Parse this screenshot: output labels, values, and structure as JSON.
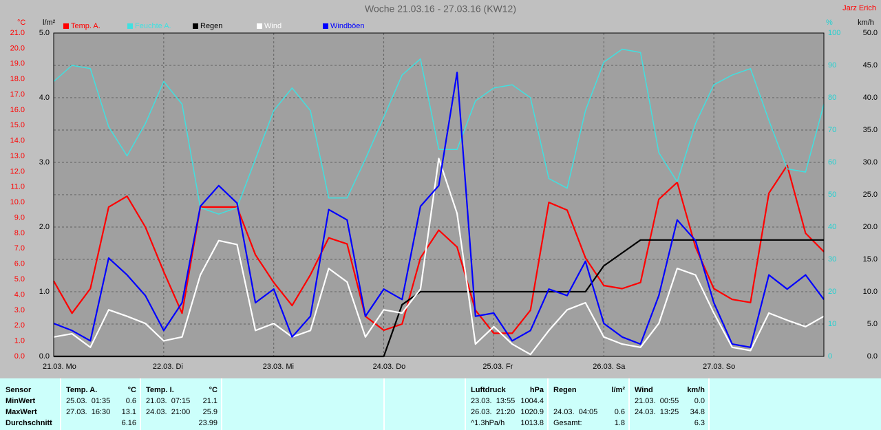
{
  "chart_data": {
    "type": "line",
    "title": "Woche 21.03.16 - 27.03.16 (KW12)",
    "author": "Jarz Erich",
    "categories": [
      "21.03. Mo",
      null,
      null,
      null,
      null,
      null,
      "22.03. Di",
      null,
      null,
      null,
      null,
      null,
      "23.03. Mi",
      null,
      null,
      null,
      null,
      null,
      "24.03. Do",
      null,
      null,
      null,
      null,
      null,
      "25.03. Fr",
      null,
      null,
      null,
      null,
      null,
      "26.03. Sa",
      null,
      null,
      null,
      null,
      null,
      "27.03. So",
      null,
      null,
      null,
      null,
      null,
      null
    ],
    "xgrid": true,
    "y_axes": [
      {
        "unit": "°C",
        "color": "#ff0000",
        "lim": [
          0,
          21
        ],
        "ticks": [
          {
            "value": 0,
            "label": "0.0"
          },
          {
            "value": 1,
            "label": "1.0"
          },
          {
            "value": 2,
            "label": "2.0"
          },
          {
            "value": 3,
            "label": "3.0"
          },
          {
            "value": 4,
            "label": "4.0"
          },
          {
            "value": 5,
            "label": "5.0"
          },
          {
            "value": 6,
            "label": "6.0"
          },
          {
            "value": 7,
            "label": "7.0"
          },
          {
            "value": 8,
            "label": "8.0"
          },
          {
            "value": 9,
            "label": "9.0"
          },
          {
            "value": 10,
            "label": "10.0"
          },
          {
            "value": 11,
            "label": "11.0"
          },
          {
            "value": 12,
            "label": "12.0"
          },
          {
            "value": 13,
            "label": "13.0"
          },
          {
            "value": 14,
            "label": "14.0"
          },
          {
            "value": 15,
            "label": "15.0"
          },
          {
            "value": 16,
            "label": "16.0"
          },
          {
            "value": 17,
            "label": "17.0"
          },
          {
            "value": 18,
            "label": "18.0"
          },
          {
            "value": 19,
            "label": "19.0"
          },
          {
            "value": 20,
            "label": "20.0"
          },
          {
            "value": 21,
            "label": "21.0"
          }
        ]
      },
      {
        "unit": "l/m²",
        "color": "#000000",
        "lim": [
          0,
          5
        ],
        "ticks": [
          {
            "value": 0,
            "label": "0.0"
          },
          {
            "value": 1,
            "label": "1.0"
          },
          {
            "value": 2,
            "label": "2.0"
          },
          {
            "value": 3,
            "label": "3.0"
          },
          {
            "value": 4,
            "label": "4.0"
          },
          {
            "value": 5,
            "label": "5.0"
          }
        ]
      },
      {
        "unit": "%",
        "color": "#20d0d0",
        "lim": [
          0,
          100
        ],
        "grid": true,
        "ticks": [
          0,
          10,
          20,
          30,
          40,
          50,
          60,
          70,
          80,
          90,
          100
        ]
      },
      {
        "unit": "km/h",
        "color": "#000000",
        "lim": [
          0,
          50
        ],
        "ticks": [
          {
            "value": 0,
            "label": "0.0"
          },
          {
            "value": 5,
            "label": "5.0"
          },
          {
            "value": 10,
            "label": "10.0"
          },
          {
            "value": 15,
            "label": "15.0"
          },
          {
            "value": 20,
            "label": "20.0"
          },
          {
            "value": 25,
            "label": "25.0"
          },
          {
            "value": 30,
            "label": "30.0"
          },
          {
            "value": 35,
            "label": "35.0"
          },
          {
            "value": 40,
            "label": "40.0"
          },
          {
            "value": 45,
            "label": "45.0"
          },
          {
            "value": 50,
            "label": "50.0"
          }
        ]
      }
    ],
    "series": [
      {
        "name": "Temp. A.",
        "color": "#ff0000",
        "axis": 0,
        "values": [
          4.9,
          2.8,
          4.4,
          9.7,
          10.4,
          8.4,
          5.5,
          2.8,
          9.7,
          9.7,
          9.7,
          6.6,
          4.8,
          3.3,
          5.3,
          7.7,
          7.3,
          2.6,
          1.7,
          2.1,
          6.4,
          8.2,
          7.1,
          3.0,
          1.5,
          1.5,
          3.0,
          10.0,
          9.5,
          6.4,
          4.6,
          4.4,
          4.8,
          10.2,
          11.3,
          7.1,
          4.4,
          3.7,
          3.5,
          10.6,
          12.4,
          8.0,
          6.8
        ]
      },
      {
        "name": "Feuchte A.",
        "color": "#40e0e0",
        "axis": 2,
        "values": [
          85,
          90,
          89,
          71,
          62,
          72,
          85,
          78,
          46,
          44,
          46,
          61,
          76,
          83,
          76,
          49,
          49,
          61,
          74,
          87,
          92,
          64,
          64,
          79,
          83,
          84,
          80,
          55,
          52,
          76,
          91,
          95,
          94,
          63,
          54,
          72,
          84,
          87,
          89,
          73,
          58,
          57,
          78
        ]
      },
      {
        "name": "Regen",
        "color": "#000000",
        "axis": 1,
        "values": [
          0,
          0,
          0,
          0,
          0,
          0,
          0,
          0,
          0,
          0,
          0,
          0,
          0,
          0,
          0,
          0,
          0,
          0,
          0,
          0.8,
          1.0,
          1.0,
          1.0,
          1.0,
          1.0,
          1.0,
          1.0,
          1.0,
          1.0,
          1.0,
          1.4,
          1.6,
          1.8,
          1.8,
          1.8,
          1.8,
          1.8,
          1.8,
          1.8,
          1.8,
          1.8,
          1.8,
          1.8
        ]
      },
      {
        "name": "Wind",
        "color": "#ffffff",
        "axis": 3,
        "values": [
          3.0,
          3.5,
          1.4,
          7.2,
          6.2,
          5.1,
          2.4,
          3.0,
          12.6,
          17.9,
          17.3,
          4.0,
          5.1,
          3.0,
          4.0,
          13.6,
          11.5,
          3.0,
          7.2,
          6.7,
          10.4,
          30.6,
          22.1,
          1.9,
          4.6,
          1.9,
          0.3,
          4.0,
          7.2,
          8.3,
          3.0,
          1.9,
          1.4,
          5.1,
          13.6,
          12.6,
          6.7,
          1.4,
          0.9,
          6.7,
          5.6,
          4.6,
          6.2
        ]
      },
      {
        "name": "Windböen",
        "color": "#0000ff",
        "axis": 3,
        "values": [
          5.1,
          4.0,
          2.4,
          15.2,
          12.6,
          9.4,
          4.0,
          8.3,
          23.2,
          26.4,
          23.7,
          8.3,
          10.4,
          3.0,
          6.2,
          22.7,
          21.1,
          6.2,
          10.4,
          8.8,
          23.2,
          26.4,
          43.9,
          6.2,
          6.7,
          2.4,
          4.0,
          10.4,
          9.4,
          14.7,
          5.1,
          3.0,
          1.9,
          9.4,
          21.1,
          17.9,
          8.3,
          1.9,
          1.4,
          12.6,
          10.4,
          12.6,
          8.8
        ]
      }
    ]
  },
  "stats": {
    "row_title": "Sensor",
    "row_labels": [
      "MinWert",
      "MaxWert",
      "Durchschnitt"
    ],
    "columns": [
      {
        "title": "Temp. A.",
        "unit": "°C",
        "cells": [
          [
            "25.03.  01:35",
            "0.6"
          ],
          [
            "27.03.  16:30",
            "13.1"
          ],
          [
            null,
            "6.16"
          ]
        ]
      },
      {
        "title": "Temp. I.",
        "unit": "°C",
        "cells": [
          [
            "21.03.  07:15",
            "21.1"
          ],
          [
            "24.03.  21:00",
            "25.9"
          ],
          [
            null,
            "23.99"
          ]
        ]
      },
      {
        "title": "Luftdruck",
        "unit": "hPa",
        "cells": [
          [
            "23.03.  13:55",
            "1004.4"
          ],
          [
            "26.03.  21:20",
            "1020.9"
          ],
          [
            "^1.3hPa/h",
            "1013.8"
          ]
        ]
      },
      {
        "title": "Regen",
        "unit": "l/m²",
        "cells": [
          [
            null,
            null
          ],
          [
            "24.03.  04:05",
            "0.6"
          ],
          [
            "Gesamt:",
            "1.8"
          ]
        ]
      },
      {
        "title": "Wind",
        "unit": "km/h",
        "cells": [
          [
            "21.03.  00:55",
            "0.0"
          ],
          [
            "24.03.  13:25",
            "34.8"
          ],
          [
            null,
            "6.3"
          ]
        ]
      }
    ]
  }
}
